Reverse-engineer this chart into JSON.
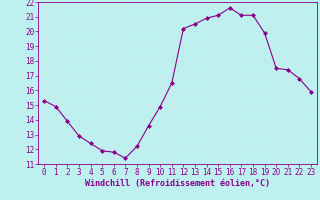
{
  "x": [
    0,
    1,
    2,
    3,
    4,
    5,
    6,
    7,
    8,
    9,
    10,
    11,
    12,
    13,
    14,
    15,
    16,
    17,
    18,
    19,
    20,
    21,
    22,
    23
  ],
  "y": [
    15.3,
    14.9,
    13.9,
    12.9,
    12.4,
    11.9,
    11.8,
    11.4,
    12.2,
    13.6,
    14.9,
    16.5,
    20.2,
    20.5,
    20.9,
    21.1,
    21.6,
    21.1,
    21.1,
    19.9,
    17.5,
    17.4,
    16.8,
    15.9
  ],
  "line_color": "#8b008b",
  "marker": "D",
  "marker_size": 2.0,
  "xlabel": "Windchill (Refroidissement éolien,°C)",
  "xlim": [
    -0.5,
    23.5
  ],
  "ylim": [
    11,
    22
  ],
  "xticks": [
    0,
    1,
    2,
    3,
    4,
    5,
    6,
    7,
    8,
    9,
    10,
    11,
    12,
    13,
    14,
    15,
    16,
    17,
    18,
    19,
    20,
    21,
    22,
    23
  ],
  "yticks": [
    11,
    12,
    13,
    14,
    15,
    16,
    17,
    18,
    19,
    20,
    21,
    22
  ],
  "background_color": "#bef0f0",
  "grid_color": "#c8e8e8",
  "spine_color": "#8b008b",
  "tick_color": "#8b008b",
  "label_color": "#8b008b",
  "tick_fontsize": 5.5,
  "xlabel_fontsize": 6.0
}
